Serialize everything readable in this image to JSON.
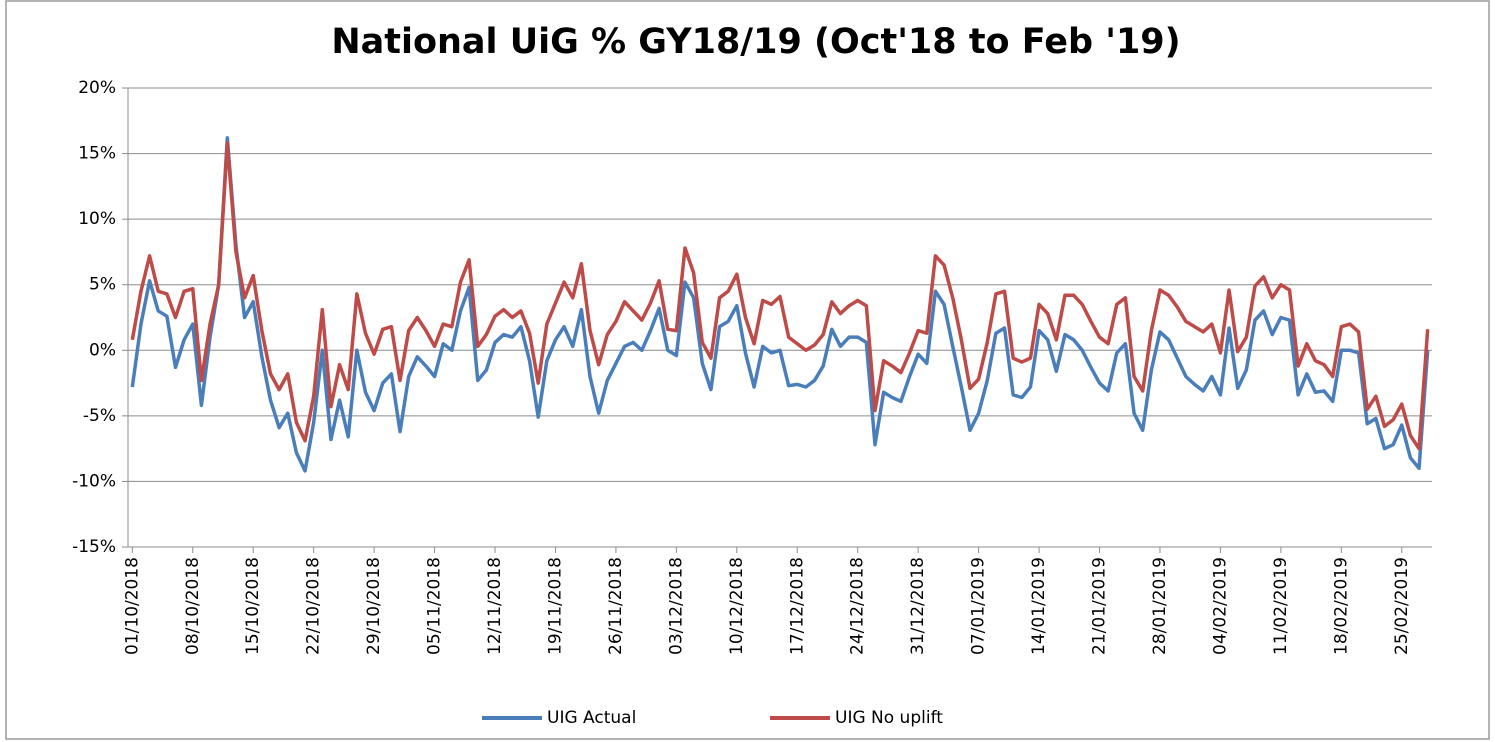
{
  "chart_data": {
    "type": "line",
    "title": "National UiG % GY18/19 (Oct'18 to Feb '19)",
    "categories": [
      "01/10/2018",
      null,
      null,
      null,
      null,
      null,
      null,
      "08/10/2018",
      null,
      null,
      null,
      null,
      null,
      null,
      "15/10/2018",
      null,
      null,
      null,
      null,
      null,
      null,
      "22/10/2018",
      null,
      null,
      null,
      null,
      null,
      null,
      "29/10/2018",
      null,
      null,
      null,
      null,
      null,
      null,
      "05/11/2018",
      null,
      null,
      null,
      null,
      null,
      null,
      "12/11/2018",
      null,
      null,
      null,
      null,
      null,
      null,
      "19/11/2018",
      null,
      null,
      null,
      null,
      null,
      null,
      "26/11/2018",
      null,
      null,
      null,
      null,
      null,
      null,
      "03/12/2018",
      null,
      null,
      null,
      null,
      null,
      null,
      "10/12/2018",
      null,
      null,
      null,
      null,
      null,
      null,
      "17/12/2018",
      null,
      null,
      null,
      null,
      null,
      null,
      "24/12/2018",
      null,
      null,
      null,
      null,
      null,
      null,
      "31/12/2018",
      null,
      null,
      null,
      null,
      null,
      null,
      "07/01/2019",
      null,
      null,
      null,
      null,
      null,
      null,
      "14/01/2019",
      null,
      null,
      null,
      null,
      null,
      null,
      "21/01/2019",
      null,
      null,
      null,
      null,
      null,
      null,
      "28/01/2019",
      null,
      null,
      null,
      null,
      null,
      null,
      "04/02/2019",
      null,
      null,
      null,
      null,
      null,
      null,
      "11/02/2019",
      null,
      null,
      null,
      null,
      null,
      null,
      "18/02/2019",
      null,
      null,
      null,
      null,
      null,
      null,
      "25/02/2019",
      null,
      null,
      null
    ],
    "series": [
      {
        "name": "UIG Actual",
        "color": "#4a7ebb",
        "values": [
          -2.8,
          2,
          5.3,
          3,
          2.6,
          -1.3,
          0.8,
          2,
          -4.2,
          1,
          5,
          16.2,
          8,
          2.5,
          3.7,
          -0.5,
          -3.8,
          -5.9,
          -4.8,
          -7.8,
          -9.2,
          -5.5,
          0,
          -6.8,
          -3.8,
          -6.6,
          0,
          -3.2,
          -4.6,
          -2.5,
          -1.8,
          -6.2,
          -2,
          -0.5,
          -1.2,
          -2,
          0.5,
          0,
          3,
          4.8,
          -2.3,
          -1.5,
          0.6,
          1.2,
          1,
          1.8,
          -0.8,
          -5.1,
          -0.8,
          0.8,
          1.8,
          0.3,
          3.1,
          -2,
          -4.8,
          -2.3,
          -1,
          0.3,
          0.6,
          0,
          1.5,
          3.2,
          0,
          -0.4,
          5.2,
          4,
          -1,
          -3,
          1.8,
          2.2,
          3.4,
          -0.2,
          -2.8,
          0.3,
          -0.2,
          0,
          -2.7,
          -2.6,
          -2.8,
          -2.3,
          -1.2,
          1.6,
          0.3,
          1,
          1,
          0.6,
          -7.2,
          -3.2,
          -3.6,
          -3.9,
          -2,
          -0.3,
          -1,
          4.5,
          3.5,
          0.3,
          -2.8,
          -6.1,
          -4.8,
          -2.3,
          1.3,
          1.7,
          -3.4,
          -3.6,
          -2.8,
          1.5,
          0.8,
          -1.6,
          1.2,
          0.8,
          0,
          -1.3,
          -2.5,
          -3.1,
          -0.2,
          0.5,
          -4.8,
          -6.1,
          -1.5,
          1.4,
          0.8,
          -0.6,
          -2,
          -2.6,
          -3.1,
          -2,
          -3.4,
          1.7,
          -2.9,
          -1.5,
          2.3,
          3,
          1.2,
          2.5,
          2.3,
          -3.4,
          -1.8,
          -3.2,
          -3.1,
          -3.9,
          0,
          0,
          -0.2,
          -5.6,
          -5.2,
          -7.5,
          -7.2,
          -5.7,
          -8.2,
          -9,
          0
        ]
      },
      {
        "name": "UIG No uplift",
        "color": "#be4b48",
        "values": [
          0.8,
          4.5,
          7.2,
          4.5,
          4.3,
          2.5,
          4.5,
          4.7,
          -2.3,
          2,
          5,
          15.8,
          7.5,
          4,
          5.7,
          1.5,
          -1.8,
          -3,
          -1.8,
          -5.5,
          -6.9,
          -3.5,
          3.1,
          -4.3,
          -1.1,
          -3,
          4.3,
          1.3,
          -0.3,
          1.6,
          1.8,
          -2.3,
          1.5,
          2.5,
          1.5,
          0.3,
          2,
          1.8,
          5.2,
          6.9,
          0.3,
          1.2,
          2.6,
          3.1,
          2.5,
          3,
          1.3,
          -2.5,
          2,
          3.6,
          5.2,
          4,
          6.6,
          1.5,
          -1.1,
          1.2,
          2.2,
          3.7,
          3,
          2.3,
          3.6,
          5.3,
          1.6,
          1.5,
          7.8,
          5.9,
          0.6,
          -0.6,
          4,
          4.5,
          5.8,
          2.5,
          0.5,
          3.8,
          3.5,
          4.1,
          1,
          0.5,
          0,
          0.4,
          1.2,
          3.7,
          2.8,
          3.4,
          3.8,
          3.4,
          -4.6,
          -0.8,
          -1.2,
          -1.7,
          -0.2,
          1.5,
          1.3,
          7.2,
          6.5,
          4,
          0.8,
          -2.9,
          -2.2,
          0.6,
          4.3,
          4.5,
          -0.6,
          -0.9,
          -0.6,
          3.5,
          2.8,
          0.8,
          4.2,
          4.2,
          3.5,
          2.2,
          1,
          0.5,
          3.5,
          4,
          -2,
          -3.1,
          1.5,
          4.6,
          4.2,
          3.3,
          2.2,
          1.8,
          1.4,
          2,
          -0.2,
          4.6,
          -0.1,
          1,
          4.9,
          5.6,
          4,
          5,
          4.6,
          -1.2,
          0.5,
          -0.8,
          -1.1,
          -2,
          1.8,
          2,
          1.4,
          -4.5,
          -3.5,
          -5.8,
          -5.3,
          -4.1,
          -6.5,
          -7.5,
          1.6
        ]
      }
    ],
    "ylim": [
      -15,
      20
    ],
    "yticks": [
      {
        "value": -15,
        "label": "-15%"
      },
      {
        "value": -10,
        "label": "-10%"
      },
      {
        "value": -5,
        "label": "-5%"
      },
      {
        "value": 0,
        "label": "0%"
      },
      {
        "value": 5,
        "label": "5%"
      },
      {
        "value": 10,
        "label": "10%"
      },
      {
        "value": 15,
        "label": "15%"
      },
      {
        "value": 20,
        "label": "20%"
      }
    ],
    "grid": true,
    "legend": "bottom"
  }
}
